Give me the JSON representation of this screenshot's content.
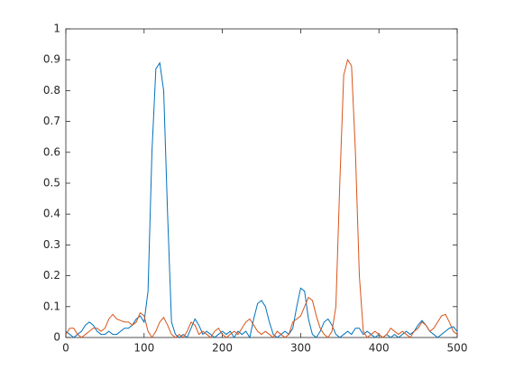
{
  "chart_data": {
    "type": "line",
    "x": [
      0,
      5,
      10,
      15,
      20,
      25,
      30,
      35,
      40,
      45,
      50,
      55,
      60,
      65,
      70,
      75,
      80,
      85,
      90,
      95,
      100,
      105,
      110,
      115,
      120,
      125,
      130,
      135,
      140,
      145,
      150,
      155,
      160,
      165,
      170,
      175,
      180,
      185,
      190,
      195,
      200,
      205,
      210,
      215,
      220,
      225,
      230,
      235,
      240,
      245,
      250,
      255,
      260,
      265,
      270,
      275,
      280,
      285,
      290,
      295,
      300,
      305,
      310,
      315,
      320,
      325,
      330,
      335,
      340,
      345,
      350,
      355,
      360,
      365,
      370,
      375,
      380,
      385,
      390,
      395,
      400,
      405,
      410,
      415,
      420,
      425,
      430,
      435,
      440,
      445,
      450,
      455,
      460,
      465,
      470,
      475,
      480,
      485,
      490,
      495,
      500
    ],
    "series": [
      {
        "color": "#0072bd",
        "values": [
          0.02,
          0.01,
          0.0,
          0.01,
          0.02,
          0.04,
          0.05,
          0.04,
          0.02,
          0.01,
          0.01,
          0.02,
          0.01,
          0.01,
          0.02,
          0.03,
          0.03,
          0.04,
          0.06,
          0.07,
          0.05,
          0.15,
          0.6,
          0.87,
          0.89,
          0.8,
          0.4,
          0.05,
          0.01,
          0.0,
          0.01,
          0.0,
          0.03,
          0.06,
          0.04,
          0.01,
          0.02,
          0.01,
          0.0,
          0.01,
          0.02,
          0.01,
          0.02,
          0.0,
          0.02,
          0.01,
          0.02,
          0.0,
          0.06,
          0.11,
          0.12,
          0.1,
          0.05,
          0.01,
          0.0,
          0.01,
          0.02,
          0.01,
          0.03,
          0.1,
          0.16,
          0.15,
          0.06,
          0.01,
          0.0,
          0.02,
          0.05,
          0.06,
          0.04,
          0.01,
          0.0,
          0.01,
          0.02,
          0.01,
          0.03,
          0.03,
          0.01,
          0.02,
          0.01,
          0.0,
          0.01,
          0.0,
          0.01,
          0.0,
          0.01,
          0.0,
          0.01,
          0.02,
          0.01,
          0.02,
          0.04,
          0.055,
          0.04,
          0.02,
          0.01,
          0.0,
          0.01,
          0.02,
          0.03,
          0.035,
          0.02
        ]
      },
      {
        "color": "#d95319",
        "values": [
          0.01,
          0.03,
          0.03,
          0.01,
          0.0,
          0.01,
          0.02,
          0.03,
          0.03,
          0.02,
          0.03,
          0.06,
          0.075,
          0.06,
          0.055,
          0.05,
          0.05,
          0.04,
          0.05,
          0.08,
          0.07,
          0.02,
          0.0,
          0.02,
          0.05,
          0.065,
          0.04,
          0.01,
          0.0,
          0.01,
          0.0,
          0.02,
          0.05,
          0.04,
          0.01,
          0.02,
          0.01,
          0.0,
          0.02,
          0.03,
          0.01,
          0.0,
          0.01,
          0.02,
          0.01,
          0.03,
          0.05,
          0.06,
          0.04,
          0.02,
          0.01,
          0.02,
          0.01,
          0.0,
          0.02,
          0.01,
          0.0,
          0.01,
          0.05,
          0.06,
          0.07,
          0.1,
          0.13,
          0.12,
          0.07,
          0.03,
          0.01,
          0.0,
          0.02,
          0.1,
          0.5,
          0.85,
          0.9,
          0.88,
          0.6,
          0.2,
          0.02,
          0.0,
          0.01,
          0.02,
          0.01,
          0.0,
          0.01,
          0.03,
          0.02,
          0.01,
          0.02,
          0.01,
          0.0,
          0.02,
          0.03,
          0.05,
          0.04,
          0.02,
          0.03,
          0.05,
          0.07,
          0.075,
          0.05,
          0.02,
          0.01
        ]
      }
    ],
    "xlim": [
      0,
      500
    ],
    "xticks": [
      0,
      100,
      200,
      300,
      400,
      500
    ],
    "ylim": [
      0,
      1
    ],
    "yticks": [
      0,
      0.1,
      0.2,
      0.3,
      0.4,
      0.5,
      0.6,
      0.7,
      0.8,
      0.9,
      1
    ],
    "grid": false
  }
}
